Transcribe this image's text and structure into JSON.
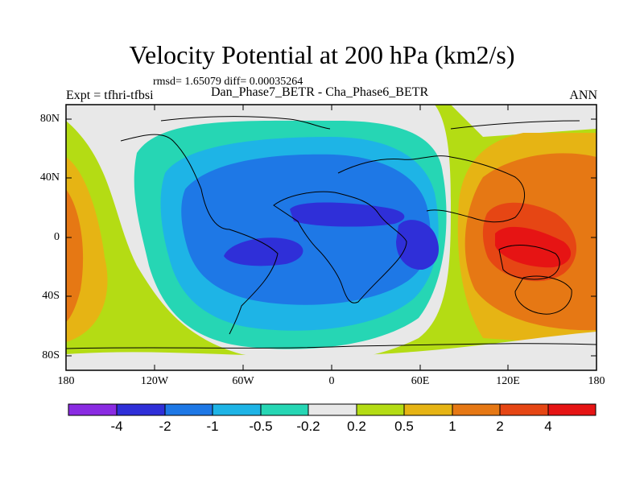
{
  "title": "Velocity Potential at 200 hPa (km2/s)",
  "stats": "rmsd= 1.65079 diff= 0.00035264",
  "experiment": "Expt = tfhri-tfbsi",
  "cases": "Dan_Phase7_BETR - Cha_Phase6_BETR",
  "season": "ANN",
  "lat_ticks": [
    "80N",
    "40N",
    "0",
    "40S",
    "80S"
  ],
  "lon_ticks": [
    "180",
    "120W",
    "60W",
    "0",
    "60E",
    "120E",
    "180"
  ],
  "colorbar": {
    "labels": [
      "-4",
      "-2",
      "-1",
      "-0.5",
      "-0.2",
      "0.2",
      "0.5",
      "1",
      "2",
      "4"
    ],
    "colors": [
      "#8a2be2",
      "#2f2fd8",
      "#1e78e6",
      "#1eb4e6",
      "#26d6b4",
      "#e8e8e8",
      "#b4dc14",
      "#e6b414",
      "#e67814",
      "#e64614",
      "#e61414"
    ]
  },
  "chart_data": {
    "type": "heatmap",
    "variable": "Velocity Potential at 200 hPa",
    "units": "km2/s",
    "levels": [
      -4,
      -2,
      -1,
      -0.5,
      -0.2,
      0.2,
      0.5,
      1,
      2,
      4
    ],
    "x_range": [
      -180,
      180
    ],
    "y_range": [
      -90,
      90
    ],
    "rmsd": 1.65079,
    "diff": 0.00035264
  }
}
